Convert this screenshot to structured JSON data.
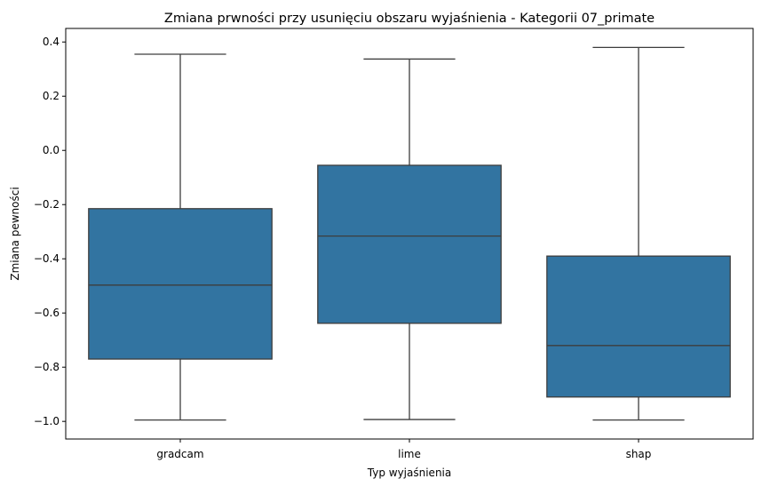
{
  "chart_data": {
    "type": "box",
    "title": "Zmiana prwności przy usunięciu obszaru wyjaśnienia - Kategorii 07_primate",
    "xlabel": "Typ wyjaśnienia",
    "ylabel": "Zmiana pewności",
    "ylim": [
      -1.065,
      0.45
    ],
    "yticks": [
      -1.0,
      -0.8,
      -0.6,
      -0.4,
      -0.2,
      0.0,
      0.2,
      0.4
    ],
    "ytick_labels": [
      "−1.0",
      "−0.8",
      "−0.6",
      "−0.4",
      "−0.2",
      "0.0",
      "0.2",
      "0.4"
    ],
    "categories": [
      "gradcam",
      "lime",
      "shap"
    ],
    "boxes": [
      {
        "category": "gradcam",
        "whisker_low": -0.995,
        "q1": -0.77,
        "median": -0.497,
        "q3": -0.215,
        "whisker_high": 0.355
      },
      {
        "category": "lime",
        "whisker_low": -0.993,
        "q1": -0.638,
        "median": -0.316,
        "q3": -0.055,
        "whisker_high": 0.337
      },
      {
        "category": "shap",
        "whisker_low": -0.995,
        "q1": -0.91,
        "median": -0.72,
        "q3": -0.39,
        "whisker_high": 0.38
      }
    ],
    "grid": false,
    "colors": {
      "box_fill": "#3274a1",
      "line": "#3d3d3d",
      "axis": "#000000"
    }
  }
}
